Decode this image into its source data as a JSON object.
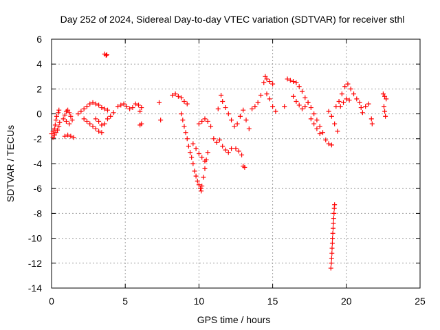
{
  "chart_data": {
    "type": "scatter",
    "title": "Day 252 of 2024, Sidereal Day-to-day VTEC variation (SDTVAR) for receiver sthl",
    "xlabel": "GPS time / hours",
    "ylabel": "SDTVAR / TECUs",
    "xlim": [
      0,
      25
    ],
    "ylim": [
      -14,
      6
    ],
    "xticks": [
      0,
      5,
      10,
      15,
      20,
      25
    ],
    "yticks": [
      -14,
      -12,
      -10,
      -8,
      -6,
      -4,
      -2,
      0,
      2,
      4,
      6
    ],
    "grid": true,
    "marker": "+",
    "color": "#ff0000",
    "series": [
      {
        "name": "SDTVAR",
        "points": [
          [
            0.0,
            -1.6
          ],
          [
            0.1,
            -1.4
          ],
          [
            0.2,
            -1.2
          ],
          [
            0.25,
            -0.9
          ],
          [
            0.3,
            -0.5
          ],
          [
            0.35,
            -0.2
          ],
          [
            0.45,
            0.1
          ],
          [
            0.5,
            0.3
          ],
          [
            0.1,
            -1.9
          ],
          [
            0.2,
            -1.7
          ],
          [
            0.3,
            -1.5
          ],
          [
            0.4,
            -1.3
          ],
          [
            0.5,
            -1.0
          ],
          [
            0.55,
            -0.7
          ],
          [
            0.8,
            -0.4
          ],
          [
            0.9,
            -0.1
          ],
          [
            1.0,
            0.2
          ],
          [
            1.1,
            0.3
          ],
          [
            1.2,
            0.1
          ],
          [
            1.3,
            -0.2
          ],
          [
            1.4,
            -0.5
          ],
          [
            0.9,
            -1.8
          ],
          [
            1.1,
            -1.7
          ],
          [
            1.3,
            -1.8
          ],
          [
            1.5,
            -1.9
          ],
          [
            1.0,
            -0.6
          ],
          [
            1.2,
            -0.8
          ],
          [
            1.8,
            0.0
          ],
          [
            2.0,
            0.2
          ],
          [
            2.2,
            0.4
          ],
          [
            2.4,
            0.6
          ],
          [
            2.6,
            0.8
          ],
          [
            2.8,
            0.9
          ],
          [
            3.0,
            0.8
          ],
          [
            3.2,
            0.7
          ],
          [
            3.4,
            0.5
          ],
          [
            3.6,
            0.4
          ],
          [
            3.8,
            0.3
          ],
          [
            2.2,
            -0.4
          ],
          [
            2.4,
            -0.6
          ],
          [
            2.6,
            -0.8
          ],
          [
            2.8,
            -1.0
          ],
          [
            3.0,
            -1.2
          ],
          [
            3.2,
            -1.4
          ],
          [
            3.4,
            -1.5
          ],
          [
            3.0,
            -0.4
          ],
          [
            3.2,
            -0.6
          ],
          [
            3.4,
            -0.9
          ],
          [
            3.6,
            -0.8
          ],
          [
            3.8,
            -0.4
          ],
          [
            4.0,
            -0.2
          ],
          [
            4.2,
            0.1
          ],
          [
            3.6,
            4.8
          ],
          [
            3.7,
            4.7
          ],
          [
            3.75,
            4.75
          ],
          [
            4.5,
            0.6
          ],
          [
            4.7,
            0.7
          ],
          [
            4.9,
            0.8
          ],
          [
            5.1,
            0.6
          ],
          [
            5.3,
            0.4
          ],
          [
            5.5,
            0.5
          ],
          [
            5.7,
            0.8
          ],
          [
            5.9,
            0.7
          ],
          [
            6.1,
            0.5
          ],
          [
            6.0,
            0.2
          ],
          [
            6.1,
            -0.8
          ],
          [
            6.0,
            -0.9
          ],
          [
            7.3,
            0.9
          ],
          [
            7.4,
            -0.5
          ],
          [
            8.2,
            1.5
          ],
          [
            8.4,
            1.6
          ],
          [
            8.6,
            1.4
          ],
          [
            8.8,
            1.3
          ],
          [
            9.0,
            1.0
          ],
          [
            9.2,
            0.8
          ],
          [
            8.8,
            0.0
          ],
          [
            8.9,
            -0.5
          ],
          [
            9.0,
            -1.0
          ],
          [
            9.1,
            -1.5
          ],
          [
            9.2,
            -2.0
          ],
          [
            9.3,
            -2.6
          ],
          [
            9.4,
            -3.1
          ],
          [
            9.5,
            -3.5
          ],
          [
            9.6,
            -4.0
          ],
          [
            9.7,
            -4.6
          ],
          [
            9.8,
            -5.0
          ],
          [
            9.9,
            -5.4
          ],
          [
            10.0,
            -5.7
          ],
          [
            10.1,
            -6.0
          ],
          [
            10.15,
            -6.2
          ],
          [
            10.2,
            -5.8
          ],
          [
            10.3,
            -5.1
          ],
          [
            10.4,
            -4.4
          ],
          [
            10.5,
            -3.7
          ],
          [
            10.6,
            -3.1
          ],
          [
            9.6,
            -2.4
          ],
          [
            9.8,
            -2.8
          ],
          [
            10.0,
            -3.2
          ],
          [
            10.2,
            -3.5
          ],
          [
            10.4,
            -3.8
          ],
          [
            10.0,
            -0.8
          ],
          [
            10.2,
            -0.6
          ],
          [
            10.4,
            -0.4
          ],
          [
            10.6,
            -0.6
          ],
          [
            10.8,
            -1.0
          ],
          [
            11.0,
            -2.0
          ],
          [
            11.2,
            -2.3
          ],
          [
            11.4,
            -2.1
          ],
          [
            11.6,
            -2.6
          ],
          [
            11.8,
            -2.9
          ],
          [
            12.0,
            -3.1
          ],
          [
            12.2,
            -2.8
          ],
          [
            11.3,
            0.4
          ],
          [
            11.5,
            1.5
          ],
          [
            11.6,
            1.0
          ],
          [
            11.8,
            0.5
          ],
          [
            12.0,
            0.0
          ],
          [
            12.2,
            -0.5
          ],
          [
            12.4,
            -1.0
          ],
          [
            12.5,
            -2.8
          ],
          [
            12.7,
            -3.0
          ],
          [
            12.9,
            -3.3
          ],
          [
            13.0,
            -4.2
          ],
          [
            13.1,
            -4.3
          ],
          [
            12.6,
            -0.8
          ],
          [
            12.8,
            -0.2
          ],
          [
            13.0,
            0.3
          ],
          [
            13.2,
            -0.5
          ],
          [
            13.4,
            -1.2
          ],
          [
            13.6,
            0.4
          ],
          [
            13.8,
            0.6
          ],
          [
            14.0,
            0.9
          ],
          [
            14.2,
            1.5
          ],
          [
            14.4,
            2.5
          ],
          [
            14.5,
            3.0
          ],
          [
            14.6,
            2.8
          ],
          [
            14.8,
            2.6
          ],
          [
            15.0,
            2.4
          ],
          [
            14.6,
            1.6
          ],
          [
            14.8,
            1.2
          ],
          [
            15.0,
            0.6
          ],
          [
            15.2,
            0.2
          ],
          [
            15.8,
            0.6
          ],
          [
            16.0,
            2.8
          ],
          [
            16.2,
            2.7
          ],
          [
            16.4,
            2.6
          ],
          [
            16.6,
            2.5
          ],
          [
            16.8,
            2.2
          ],
          [
            17.0,
            1.8
          ],
          [
            17.2,
            1.3
          ],
          [
            17.4,
            0.9
          ],
          [
            17.6,
            0.5
          ],
          [
            17.8,
            0.0
          ],
          [
            18.0,
            -0.5
          ],
          [
            18.2,
            -1.0
          ],
          [
            18.4,
            -1.5
          ],
          [
            18.6,
            -2.1
          ],
          [
            18.8,
            -2.4
          ],
          [
            19.0,
            -2.5
          ],
          [
            16.4,
            1.4
          ],
          [
            16.6,
            1.0
          ],
          [
            16.8,
            0.7
          ],
          [
            17.0,
            0.4
          ],
          [
            17.2,
            0.6
          ],
          [
            17.4,
            0.9
          ],
          [
            17.6,
            -0.4
          ],
          [
            17.8,
            -0.8
          ],
          [
            18.0,
            -1.2
          ],
          [
            18.2,
            -1.6
          ],
          [
            18.8,
            0.2
          ],
          [
            19.0,
            -0.2
          ],
          [
            19.2,
            -0.8
          ],
          [
            19.4,
            -1.4
          ],
          [
            19.3,
            0.6
          ],
          [
            19.5,
            1.0
          ],
          [
            19.7,
            1.6
          ],
          [
            19.9,
            2.2
          ],
          [
            20.1,
            2.4
          ],
          [
            20.3,
            2.0
          ],
          [
            19.6,
            0.6
          ],
          [
            19.8,
            0.9
          ],
          [
            20.0,
            1.2
          ],
          [
            20.2,
            1.1
          ],
          [
            18.95,
            -12.4
          ],
          [
            18.98,
            -12.0
          ],
          [
            19.0,
            -11.6
          ],
          [
            19.02,
            -11.2
          ],
          [
            19.03,
            -10.8
          ],
          [
            19.05,
            -10.4
          ],
          [
            19.06,
            -10.0
          ],
          [
            19.08,
            -9.6
          ],
          [
            19.1,
            -9.2
          ],
          [
            19.12,
            -8.8
          ],
          [
            19.14,
            -8.4
          ],
          [
            19.16,
            -8.0
          ],
          [
            19.18,
            -7.6
          ],
          [
            19.2,
            -7.3
          ],
          [
            20.5,
            1.6
          ],
          [
            20.7,
            1.2
          ],
          [
            20.9,
            0.9
          ],
          [
            21.0,
            0.5
          ],
          [
            21.1,
            0.1
          ],
          [
            21.3,
            0.6
          ],
          [
            21.5,
            0.8
          ],
          [
            21.7,
            -0.4
          ],
          [
            21.75,
            -0.8
          ],
          [
            22.5,
            1.6
          ],
          [
            22.6,
            1.4
          ],
          [
            22.7,
            1.2
          ],
          [
            22.55,
            0.6
          ],
          [
            22.6,
            0.2
          ],
          [
            22.65,
            -0.2
          ]
        ]
      }
    ]
  }
}
